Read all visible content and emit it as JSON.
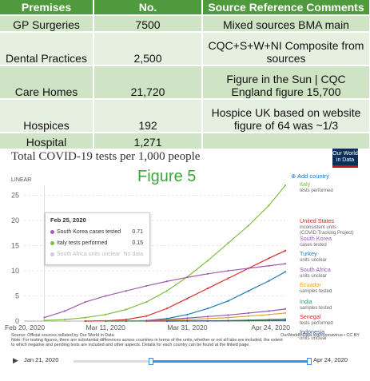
{
  "table": {
    "headers": [
      "Premises",
      "No.",
      "Source Reference Comments"
    ],
    "rows": [
      [
        "GP Surgeries",
        "7500",
        "Mixed sources BMA main"
      ],
      [
        "Dental Practices",
        "2,500",
        "CQC+S+W+NI Composite from sources"
      ],
      [
        "Care Homes",
        "21,720",
        "Figure in the Sun | CQC England figure 15,700"
      ],
      [
        "Hospices",
        "192",
        "Hospice UK based on website figure of 64 was ~1/3"
      ],
      [
        "Hospital",
        "1,271",
        ""
      ]
    ]
  },
  "figure_label": "Figure 5",
  "logo_text": "Our World in Data",
  "linear_label": "LINEAR",
  "add_country_label": "Add country",
  "tooltip": {
    "date": "Feb 25, 2020",
    "rows": [
      {
        "label": "South Korea cases tested",
        "value": "0.71",
        "color": "#a25bb0"
      },
      {
        "label": "Italy tests performed",
        "value": "0.15",
        "color": "#7fbf3f"
      },
      {
        "label": "South Africa units unclear",
        "value": "No data",
        "color": "#d6c3dc"
      }
    ]
  },
  "source": {
    "line1": "Source: Official sources collated by Our World in Data",
    "right": "OurWorldInData.org/coronavirus • CC BY",
    "line2": "Note: For testing figures, there are substantial differences across countries in terms of the units, whether or not all labs are included, the extent",
    "line3": "to which negative and pending tests are included and other aspects. Details for each country can be found at the linked page."
  },
  "timeline": {
    "start": "Jan 21, 2020",
    "end": "Apr 24, 2020",
    "selection": [
      0.33,
      1.0
    ]
  },
  "chart_data": {
    "type": "line",
    "title": "Total COVID-19 tests per 1,000 people",
    "xlabel": "",
    "ylabel": "",
    "scale": "linear",
    "x_ticks": [
      "Feb 20, 2020",
      "Mar 11, 2020",
      "Mar 31, 2020",
      "Apr 24, 2020"
    ],
    "x_tick_days": [
      0,
      20,
      40,
      64
    ],
    "ylim": [
      0,
      27
    ],
    "y_ticks": [
      0,
      5,
      10,
      15,
      20,
      25
    ],
    "grid": true,
    "series": [
      {
        "name": "Italy",
        "note": "tests performed",
        "color": "#7fbf3f",
        "points": [
          [
            5,
            0.15
          ],
          [
            10,
            0.3
          ],
          [
            15,
            0.7
          ],
          [
            20,
            1.3
          ],
          [
            25,
            2.3
          ],
          [
            30,
            3.8
          ],
          [
            35,
            6
          ],
          [
            40,
            8.8
          ],
          [
            45,
            12
          ],
          [
            50,
            15.5
          ],
          [
            55,
            19
          ],
          [
            60,
            23
          ],
          [
            64,
            27
          ]
        ]
      },
      {
        "name": "United States",
        "note": "inconsistent units (COVID Tracking Project)",
        "color": "#d62b2b",
        "points": [
          [
            15,
            0
          ],
          [
            20,
            0.05
          ],
          [
            25,
            0.3
          ],
          [
            30,
            1
          ],
          [
            35,
            2.5
          ],
          [
            40,
            4.5
          ],
          [
            45,
            6.5
          ],
          [
            50,
            8.5
          ],
          [
            55,
            10.5
          ],
          [
            60,
            12.5
          ],
          [
            64,
            14
          ]
        ]
      },
      {
        "name": "South Korea",
        "note": "cases tested",
        "color": "#a25bb0",
        "points": [
          [
            5,
            0.71
          ],
          [
            10,
            2
          ],
          [
            15,
            3.8
          ],
          [
            20,
            5
          ],
          [
            25,
            6
          ],
          [
            30,
            7
          ],
          [
            35,
            7.9
          ],
          [
            40,
            8.7
          ],
          [
            45,
            9.4
          ],
          [
            50,
            10
          ],
          [
            55,
            10.5
          ],
          [
            60,
            11
          ],
          [
            64,
            11.4
          ]
        ]
      },
      {
        "name": "Turkey",
        "note": "units unclear",
        "color": "#1f7fb5",
        "points": [
          [
            25,
            0
          ],
          [
            30,
            0.1
          ],
          [
            35,
            0.5
          ],
          [
            40,
            1.3
          ],
          [
            45,
            2.5
          ],
          [
            50,
            4
          ],
          [
            55,
            6
          ],
          [
            60,
            8
          ],
          [
            64,
            9.8
          ]
        ]
      },
      {
        "name": "South Africa",
        "note": "units unclear",
        "color": "#8e5bb0",
        "points": [
          [
            20,
            0
          ],
          [
            25,
            0.02
          ],
          [
            30,
            0.1
          ],
          [
            35,
            0.3
          ],
          [
            40,
            0.6
          ],
          [
            45,
            0.9
          ],
          [
            50,
            1.2
          ],
          [
            55,
            1.6
          ],
          [
            60,
            2
          ],
          [
            64,
            2.4
          ]
        ]
      },
      {
        "name": "Ecuador",
        "note": "samples tested",
        "color": "#e0a431",
        "points": [
          [
            20,
            0
          ],
          [
            30,
            0.05
          ],
          [
            35,
            0.15
          ],
          [
            40,
            0.3
          ],
          [
            45,
            0.5
          ],
          [
            50,
            0.7
          ],
          [
            55,
            1
          ],
          [
            60,
            1.3
          ],
          [
            64,
            1.6
          ]
        ]
      },
      {
        "name": "India",
        "note": "samples tested",
        "color": "#3a9a5b",
        "points": [
          [
            20,
            0
          ],
          [
            40,
            0.02
          ],
          [
            50,
            0.1
          ],
          [
            55,
            0.2
          ],
          [
            60,
            0.3
          ],
          [
            64,
            0.4
          ]
        ]
      },
      {
        "name": "Senegal",
        "note": "tests performed",
        "color": "#c43a32",
        "points": [
          [
            30,
            0
          ],
          [
            40,
            0.03
          ],
          [
            50,
            0.06
          ],
          [
            60,
            0.1
          ],
          [
            64,
            0.12
          ]
        ]
      },
      {
        "name": "Indonesia",
        "note": "units unclear",
        "color": "#2d5fa8",
        "points": [
          [
            35,
            0
          ],
          [
            45,
            0.02
          ],
          [
            55,
            0.08
          ],
          [
            64,
            0.15
          ]
        ]
      }
    ]
  }
}
